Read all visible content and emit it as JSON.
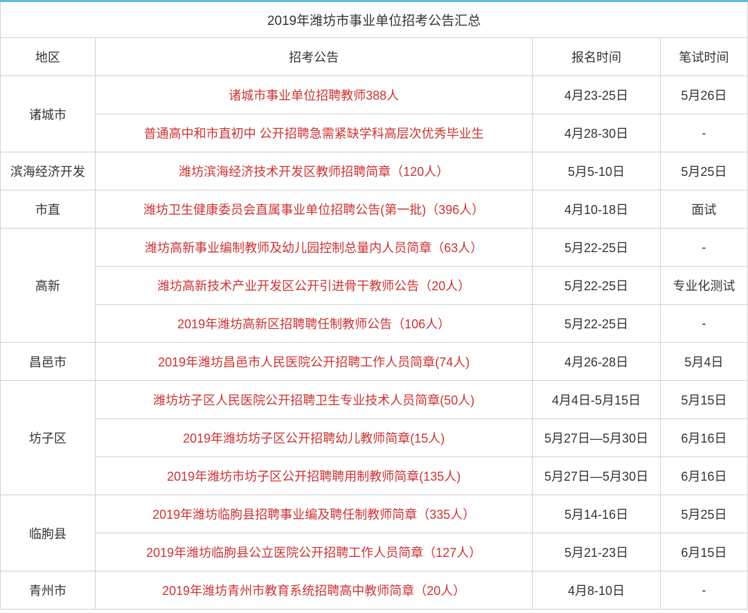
{
  "title": "2019年潍坊市事业单位招考公告汇总",
  "headers": {
    "region": "地区",
    "announcement": "招考公告",
    "registration_time": "报名时间",
    "exam_time": "笔试时间"
  },
  "colors": {
    "border_top": "#5dbdce",
    "cell_border": "#d0d0d0",
    "text_default": "#333333",
    "text_link": "#cc3333",
    "background": "#ffffff"
  },
  "font_sizes": {
    "title": 19,
    "cell": 18
  },
  "column_widths": {
    "region": 130,
    "announcement": 600,
    "registration": 175,
    "exam": 120
  },
  "rows": [
    {
      "region": "诸城市",
      "rowspan": 2,
      "announcements": [
        {
          "text": "诸城市事业单位招聘教师388人",
          "registration": "4月23-25日",
          "exam": "5月26日"
        },
        {
          "text": "普通高中和市直初中 公开招聘急需紧缺学科高层次优秀毕业生",
          "registration": "4月28-30日",
          "exam": "-"
        }
      ]
    },
    {
      "region": "滨海经济开发",
      "rowspan": 1,
      "announcements": [
        {
          "text": "潍坊滨海经济技术开发区教师招聘简章（120人）",
          "registration": "5月5-10日",
          "exam": "5月25日"
        }
      ]
    },
    {
      "region": "市直",
      "rowspan": 1,
      "announcements": [
        {
          "text": "潍坊卫生健康委员会直属事业单位招聘公告(第一批)（396人）",
          "registration": "4月10-18日",
          "exam": "面试"
        }
      ]
    },
    {
      "region": "高新",
      "rowspan": 3,
      "announcements": [
        {
          "text": "潍坊高新事业编制教师及幼儿园控制总量内人员简章（63人）",
          "registration": "5月22-25日",
          "exam": "-"
        },
        {
          "text": "潍坊高新技术产业开发区公开引进骨干教师公告（20人）",
          "registration": "5月22-25日",
          "exam": "专业化测试"
        },
        {
          "text": "2019年潍坊高新区招聘聘任制教师公告（106人）",
          "registration": "5月22-25日",
          "exam": "-"
        }
      ]
    },
    {
      "region": "昌邑市",
      "rowspan": 1,
      "announcements": [
        {
          "text": "2019年潍坊昌邑市人民医院公开招聘工作人员简章(74人)",
          "registration": "4月26-28日",
          "exam": "5月4日"
        }
      ]
    },
    {
      "region": "坊子区",
      "rowspan": 3,
      "announcements": [
        {
          "text": "潍坊坊子区人民医院公开招聘卫生专业技术人员简章(50人)",
          "registration": "4月4日-5月15日",
          "exam": "5月15日"
        },
        {
          "text": "2019年潍坊坊子区公开招聘幼儿教师简章(15人)",
          "registration": "5月27日—5月30日",
          "exam": "6月16日"
        },
        {
          "text": "2019年潍坊市坊子区公开招聘聘用制教师简章(135人)",
          "registration": "5月27日—5月30日",
          "exam": "6月16日"
        }
      ]
    },
    {
      "region": "临朐县",
      "rowspan": 2,
      "announcements": [
        {
          "text": "2019年潍坊临朐县招聘事业编及聘任制教师简章（335人）",
          "registration": "5月14-16日",
          "exam": "5月25日"
        },
        {
          "text": "2019年潍坊临朐县公立医院公开招聘工作人员简章（127人）",
          "registration": "5月21-23日",
          "exam": "6月15日"
        }
      ]
    },
    {
      "region": "青州市",
      "rowspan": 1,
      "announcements": [
        {
          "text": "2019年潍坊青州市教育系统招聘高中教师简章（20人）",
          "registration": "4月8-10日",
          "exam": "-"
        }
      ]
    }
  ]
}
